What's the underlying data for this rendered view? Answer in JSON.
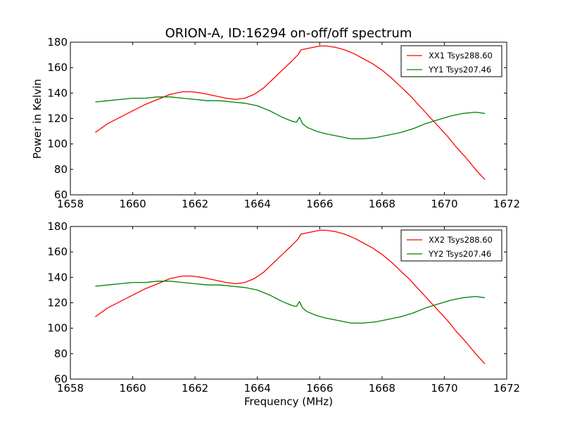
{
  "title": "ORION-A, ID:16294 on-off/off spectrum",
  "ylabel": "Power in Kelvin",
  "xlabel": "Frequency (MHz)",
  "chart_data": [
    {
      "type": "line",
      "xlim": [
        1658,
        1672
      ],
      "ylim": [
        60,
        180
      ],
      "xticks": [
        1658,
        1660,
        1662,
        1664,
        1666,
        1668,
        1670,
        1672
      ],
      "yticks": [
        60,
        80,
        100,
        120,
        140,
        160,
        180
      ],
      "legend_position": "top-right",
      "series": [
        {
          "name": "XX1 Tsys288.60",
          "color": "#ff0000",
          "x": [
            1658.8,
            1659.2,
            1659.6,
            1660.0,
            1660.4,
            1660.8,
            1661.2,
            1661.6,
            1661.9,
            1662.2,
            1662.6,
            1663.0,
            1663.3,
            1663.6,
            1663.9,
            1664.2,
            1664.5,
            1664.8,
            1665.1,
            1665.3,
            1665.4,
            1665.6,
            1665.8,
            1666.0,
            1666.2,
            1666.5,
            1666.8,
            1667.1,
            1667.4,
            1667.7,
            1668.0,
            1668.3,
            1668.6,
            1668.9,
            1669.2,
            1669.5,
            1669.8,
            1670.1,
            1670.4,
            1670.7,
            1671.0,
            1671.3
          ],
          "y": [
            109,
            116,
            121,
            126,
            131,
            135,
            139,
            141,
            141,
            140,
            138,
            136,
            135,
            136,
            139,
            144,
            151,
            158,
            165,
            170,
            174,
            175,
            176,
            177,
            177,
            176,
            174,
            171,
            167,
            163,
            158,
            152,
            145,
            138,
            130,
            122,
            114,
            106,
            97,
            89,
            80,
            72
          ]
        },
        {
          "name": "YY1 Tsys207.46",
          "color": "#008000",
          "x": [
            1658.8,
            1659.2,
            1659.6,
            1660.0,
            1660.4,
            1660.8,
            1661.2,
            1661.6,
            1662.0,
            1662.4,
            1662.8,
            1663.2,
            1663.6,
            1664.0,
            1664.4,
            1664.8,
            1665.1,
            1665.25,
            1665.35,
            1665.45,
            1665.6,
            1665.9,
            1666.2,
            1666.6,
            1667.0,
            1667.4,
            1667.8,
            1668.2,
            1668.6,
            1669.0,
            1669.4,
            1669.8,
            1670.2,
            1670.6,
            1671.0,
            1671.3
          ],
          "y": [
            133,
            134,
            135,
            136,
            136,
            137,
            137,
            136,
            135,
            134,
            134,
            133,
            132,
            130,
            126,
            121,
            118,
            117,
            121,
            116,
            113,
            110,
            108,
            106,
            104,
            104,
            105,
            107,
            109,
            112,
            116,
            119,
            122,
            124,
            125,
            124
          ]
        }
      ]
    },
    {
      "type": "line",
      "xlim": [
        1658,
        1672
      ],
      "ylim": [
        60,
        180
      ],
      "xticks": [
        1658,
        1660,
        1662,
        1664,
        1666,
        1668,
        1670,
        1672
      ],
      "yticks": [
        60,
        80,
        100,
        120,
        140,
        160,
        180
      ],
      "legend_position": "top-right",
      "series": [
        {
          "name": "XX2 Tsys288.60",
          "color": "#ff0000",
          "x": [
            1658.8,
            1659.2,
            1659.6,
            1660.0,
            1660.4,
            1660.8,
            1661.2,
            1661.6,
            1661.9,
            1662.2,
            1662.6,
            1663.0,
            1663.3,
            1663.6,
            1663.9,
            1664.2,
            1664.5,
            1664.8,
            1665.1,
            1665.3,
            1665.4,
            1665.6,
            1665.8,
            1666.0,
            1666.2,
            1666.5,
            1666.8,
            1667.1,
            1667.4,
            1667.7,
            1668.0,
            1668.3,
            1668.6,
            1668.9,
            1669.2,
            1669.5,
            1669.8,
            1670.1,
            1670.4,
            1670.7,
            1671.0,
            1671.3
          ],
          "y": [
            109,
            116,
            121,
            126,
            131,
            135,
            139,
            141,
            141,
            140,
            138,
            136,
            135,
            136,
            139,
            144,
            151,
            158,
            165,
            170,
            174,
            175,
            176,
            177,
            177,
            176,
            174,
            171,
            167,
            163,
            158,
            152,
            145,
            138,
            130,
            122,
            114,
            106,
            97,
            89,
            80,
            72
          ]
        },
        {
          "name": "YY2 Tsys207.46",
          "color": "#008000",
          "x": [
            1658.8,
            1659.2,
            1659.6,
            1660.0,
            1660.4,
            1660.8,
            1661.2,
            1661.6,
            1662.0,
            1662.4,
            1662.8,
            1663.2,
            1663.6,
            1664.0,
            1664.4,
            1664.8,
            1665.1,
            1665.25,
            1665.35,
            1665.45,
            1665.6,
            1665.9,
            1666.2,
            1666.6,
            1667.0,
            1667.4,
            1667.8,
            1668.2,
            1668.6,
            1669.0,
            1669.4,
            1669.8,
            1670.2,
            1670.6,
            1671.0,
            1671.3
          ],
          "y": [
            133,
            134,
            135,
            136,
            136,
            137,
            137,
            136,
            135,
            134,
            134,
            133,
            132,
            130,
            126,
            121,
            118,
            117,
            121,
            116,
            113,
            110,
            108,
            106,
            104,
            104,
            105,
            107,
            109,
            112,
            116,
            119,
            122,
            124,
            125,
            124
          ]
        }
      ]
    }
  ]
}
